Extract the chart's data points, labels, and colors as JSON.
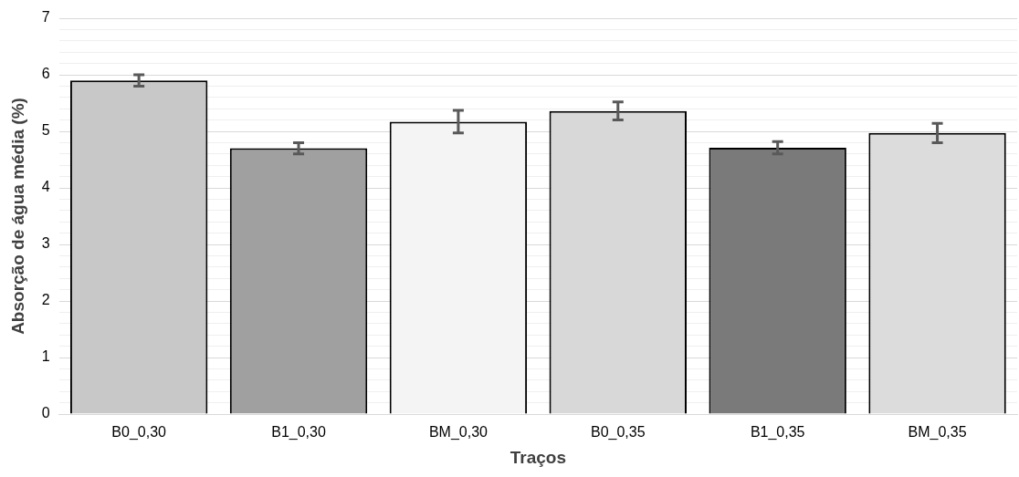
{
  "chart_data": {
    "type": "bar",
    "xlabel": "Traços",
    "ylabel": "Absorção de água média (%)",
    "categories": [
      "B0_0,30",
      "B1_0,30",
      "BM_0,30",
      "B0_0,35",
      "B1_0,35",
      "BM_0,35"
    ],
    "values": [
      5.9,
      4.7,
      5.17,
      5.36,
      4.71,
      4.97
    ],
    "errors": [
      0.1,
      0.1,
      0.2,
      0.16,
      0.11,
      0.17
    ],
    "colors": [
      "#c8c8c8",
      "#a0a0a0",
      "#f4f4f4",
      "#d8d8d8",
      "#7a7a7a",
      "#dcdcdc"
    ],
    "ylim": [
      0,
      7
    ],
    "yticks": [
      0,
      1,
      2,
      3,
      4,
      5,
      6,
      7
    ],
    "grid": true
  }
}
